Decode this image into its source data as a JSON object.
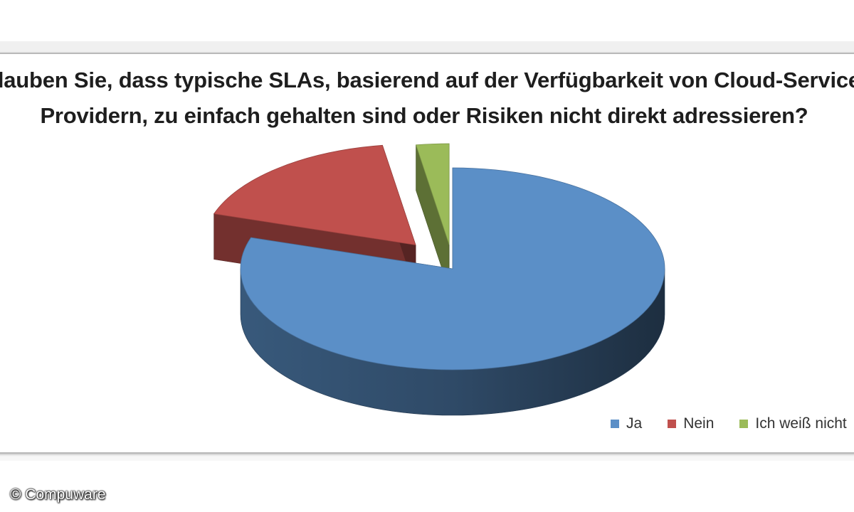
{
  "chart_data": {
    "type": "pie",
    "title_lines": [
      "Glauben Sie, dass typische SLAs, basierend auf der Verfügbarkeit von Cloud-Service-",
      "Providern, zu einfach gehalten sind oder Risiken nicht direkt adressieren?"
    ],
    "slices": [
      {
        "label": "Ja",
        "value": 80,
        "color": "#5b8fc7",
        "exploded": false
      },
      {
        "label": "Nein",
        "value": 17.5,
        "color": "#c0504d",
        "exploded": true
      },
      {
        "label": "Ich weiß nicht",
        "value": 2.5,
        "color": "#9bbb59",
        "exploded": true
      }
    ],
    "legend_position": "bottom-right",
    "style": "3d"
  },
  "copyright": "© Compuware"
}
